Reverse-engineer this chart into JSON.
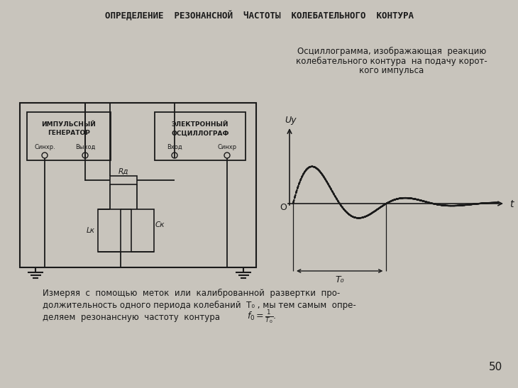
{
  "title": "ОПРЕДЕЛЕНИЕ  РЕЗОНАНСНОЙ  ЧАСТОТЫ  КОЛЕБАТЕЛЬНОГО  КОНТУРА",
  "bg_color": "#c8c4bc",
  "text_color": "#1a1a1a",
  "osc_title_line1": "Осциллограмма, изображающая  реакцию",
  "osc_title_line2": "колебательного контура  на подачу корот-",
  "osc_title_line3": "кого импульса",
  "bottom_text_line1": "Измеряя  с  помощью  меток  или  калиброванной  развертки  про-",
  "bottom_text_line2": "должительность одного периода колебаний  T₀ , мы тем самым  опре-",
  "bottom_text_line3": "деляем  резонансную  частоту  контура",
  "page_num": "50",
  "gen_box_label1": "ИМПУЛЬСНЫЙ",
  "gen_box_label2": "ГЕНЕРАТОР",
  "gen_sync": "Синхр.",
  "gen_out": "Выход",
  "osc_box_label1": "ЭЛЕКТРОННЫЙ",
  "osc_box_label2": "ОСЦИЛЛОГРАФ",
  "osc_in": "Вход",
  "osc_sync": "Синхр",
  "rd_label": "Rд",
  "lk_label": "Lк",
  "ck_label": "Cк",
  "uy_label": "Uу",
  "t_label": "t",
  "o_label": "O",
  "t0_label": "T₀",
  "damping": 0.3,
  "frequency": 2.2
}
